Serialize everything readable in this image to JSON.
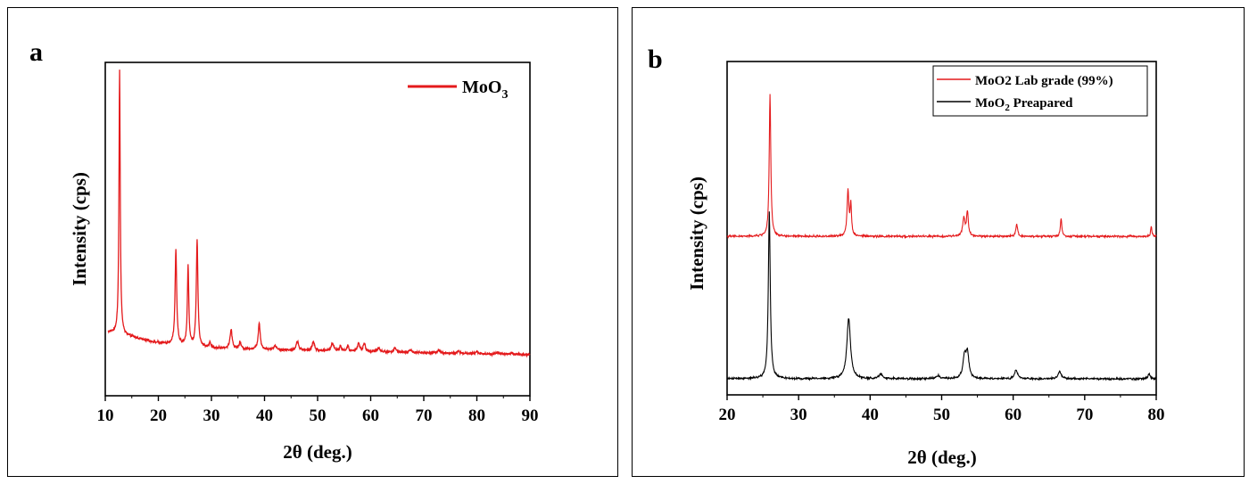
{
  "chart_data": [
    {
      "panel_letter": "a",
      "type": "line",
      "xlabel": "2θ (deg.)",
      "ylabel": "Intensity (cps)",
      "xlim": [
        10,
        90
      ],
      "xticks": [
        10,
        20,
        30,
        40,
        50,
        60,
        70,
        80,
        90
      ],
      "yticks_shown": false,
      "legend_position": "top-right",
      "series": [
        {
          "name": "MoO3",
          "legend_main": "MoO",
          "legend_sub": "3",
          "color": "#e41a1c",
          "baseline": [
            [
              10.5,
              0.085
            ],
            [
              12,
              0.08
            ],
            [
              20,
              0.045
            ],
            [
              30,
              0.025
            ],
            [
              50,
              0.015
            ],
            [
              90,
              0.0
            ]
          ],
          "noise": 0.006,
          "peaks": [
            [
              12.7,
              1.0,
              0.14
            ],
            [
              23.3,
              0.36,
              0.18
            ],
            [
              25.6,
              0.3,
              0.16
            ],
            [
              27.3,
              0.4,
              0.18
            ],
            [
              29.7,
              0.02,
              0.2
            ],
            [
              33.7,
              0.07,
              0.25
            ],
            [
              35.4,
              0.025,
              0.2
            ],
            [
              39.0,
              0.1,
              0.22
            ],
            [
              42.0,
              0.015,
              0.3
            ],
            [
              46.2,
              0.035,
              0.25
            ],
            [
              49.2,
              0.035,
              0.25
            ],
            [
              52.8,
              0.03,
              0.3
            ],
            [
              54.3,
              0.02,
              0.2
            ],
            [
              55.7,
              0.02,
              0.2
            ],
            [
              57.7,
              0.03,
              0.25
            ],
            [
              58.8,
              0.03,
              0.25
            ],
            [
              61.5,
              0.015,
              0.3
            ],
            [
              64.6,
              0.015,
              0.3
            ],
            [
              67.5,
              0.01,
              0.3
            ],
            [
              72.8,
              0.012,
              0.3
            ],
            [
              76.5,
              0.008,
              0.3
            ],
            [
              80.0,
              0.008,
              0.3
            ],
            [
              84.0,
              0.008,
              0.3
            ],
            [
              86.5,
              0.006,
              0.3
            ]
          ]
        }
      ]
    },
    {
      "panel_letter": "b",
      "type": "line",
      "xlabel": "2θ (deg.)",
      "ylabel": "Intensity (cps)",
      "xlim": [
        20,
        80
      ],
      "xticks": [
        20,
        30,
        40,
        50,
        60,
        70,
        80
      ],
      "yticks_shown": false,
      "legend_position": "top-right",
      "series": [
        {
          "name": "MoO2 Lab grade (99%)",
          "legend_main": "MoO2 Lab grade (99%)",
          "legend_sub": "",
          "color": "#e41a1c",
          "offset": 0.47,
          "baseline": [
            [
              20,
              0.0
            ],
            [
              80,
              0.0
            ]
          ],
          "noise": 0.004,
          "peaks": [
            [
              26.0,
              0.47,
              0.13
            ],
            [
              36.9,
              0.15,
              0.15
            ],
            [
              37.3,
              0.1,
              0.12
            ],
            [
              53.1,
              0.06,
              0.18
            ],
            [
              53.6,
              0.08,
              0.15
            ],
            [
              60.5,
              0.04,
              0.15
            ],
            [
              66.7,
              0.06,
              0.12
            ],
            [
              79.3,
              0.035,
              0.1
            ]
          ]
        },
        {
          "name": "MoO2 Preapared",
          "legend_main": "MoO",
          "legend_sub": "2",
          "legend_rest": " Preapared",
          "color": "#000000",
          "offset": 0.0,
          "baseline": [
            [
              20,
              0.0
            ],
            [
              80,
              0.0
            ]
          ],
          "noise": 0.004,
          "peaks": [
            [
              25.9,
              0.55,
              0.16
            ],
            [
              37.0,
              0.2,
              0.3
            ],
            [
              41.5,
              0.015,
              0.3
            ],
            [
              49.5,
              0.01,
              0.3
            ],
            [
              53.2,
              0.07,
              0.25
            ],
            [
              53.6,
              0.08,
              0.25
            ],
            [
              60.4,
              0.03,
              0.25
            ],
            [
              66.5,
              0.025,
              0.25
            ],
            [
              79.0,
              0.015,
              0.2
            ]
          ]
        }
      ]
    }
  ]
}
